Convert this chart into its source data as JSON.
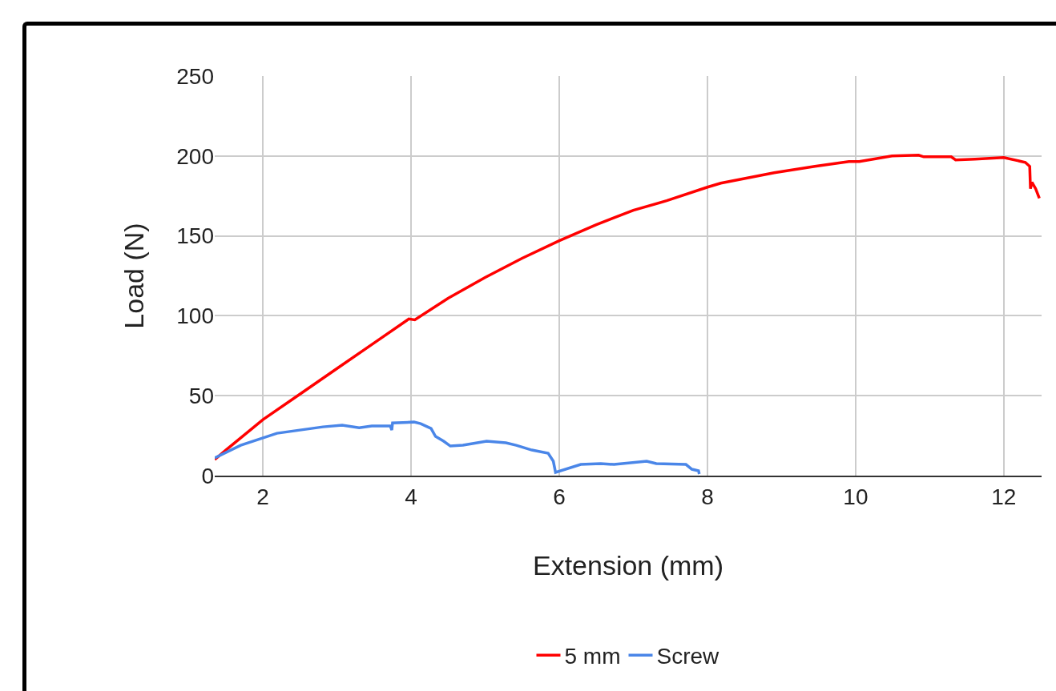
{
  "chart_data": {
    "type": "line",
    "xlabel": "Extension (mm)",
    "ylabel": "Load (N)",
    "xlim": [
      1.35,
      12.51
    ],
    "xticks": [
      2,
      4,
      6,
      8,
      10,
      12
    ],
    "ylim": [
      0,
      250
    ],
    "yticks": [
      0,
      50,
      100,
      150,
      200,
      250
    ],
    "grid": true,
    "legend": "bottom",
    "marker": "none",
    "line_style": "solid",
    "series": [
      {
        "name": "5 mm",
        "color": "#ff0000",
        "x": [
          1.35,
          1.5,
          2,
          2.5,
          3,
          3.5,
          3.97,
          4.05,
          4.5,
          5,
          5.5,
          6,
          6.5,
          7,
          7.45,
          8,
          8.18,
          8.9,
          9.45,
          9.91,
          10.05,
          10.49,
          10.85,
          10.92,
          11.29,
          11.35,
          11.61,
          12,
          12.29,
          12.35,
          12.36,
          12.38,
          12.43,
          12.48
        ],
        "values": [
          10,
          16,
          35,
          51,
          67,
          83,
          98,
          97.5,
          111,
          124,
          136,
          147,
          157,
          166,
          172,
          180.5,
          183,
          189.5,
          193.5,
          196.5,
          196.5,
          200,
          200.5,
          199.5,
          199.5,
          197.5,
          198,
          199,
          196,
          193.5,
          179.5,
          183.5,
          179.5,
          173.5
        ]
      },
      {
        "name": "Screw",
        "color": "#4a86e8",
        "x": [
          1.35,
          1.7,
          2.19,
          2.81,
          3.07,
          3.3,
          3.47,
          3.72,
          3.74,
          3.75,
          4.04,
          4.13,
          4.27,
          4.33,
          4.44,
          4.53,
          4.7,
          5.02,
          5.28,
          5.42,
          5.63,
          5.85,
          5.92,
          5.95,
          6.29,
          6.56,
          6.74,
          7.18,
          7.31,
          7.71,
          7.79,
          7.88,
          7.89
        ],
        "values": [
          11,
          19,
          26.5,
          30.5,
          31.5,
          30,
          31,
          31,
          28.5,
          33,
          33.5,
          32.5,
          29.5,
          24.5,
          21.5,
          18.5,
          19,
          21.5,
          20.5,
          19,
          16,
          14,
          9,
          2,
          7,
          7.5,
          7,
          9,
          7.5,
          7,
          4,
          3,
          1
        ]
      }
    ]
  }
}
